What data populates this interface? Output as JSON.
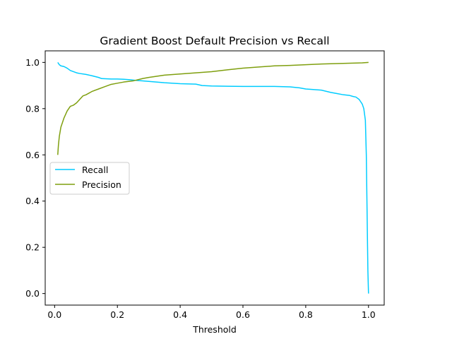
{
  "chart_data": {
    "type": "line",
    "title": "Gradient Boost Default Precision vs Recall",
    "xlabel": "Threshold",
    "ylabel": "",
    "xlim": [
      -0.03,
      1.05
    ],
    "ylim": [
      -0.05,
      1.05
    ],
    "xticks": [
      0.0,
      0.2,
      0.4,
      0.6,
      0.8,
      1.0
    ],
    "xtick_labels": [
      "0.0",
      "0.2",
      "0.4",
      "0.6",
      "0.8",
      "1.0"
    ],
    "yticks": [
      0.0,
      0.2,
      0.4,
      0.6,
      0.8,
      1.0
    ],
    "ytick_labels": [
      "0.0",
      "0.2",
      "0.4",
      "0.6",
      "0.8",
      "1.0"
    ],
    "grid": false,
    "legend": {
      "placement": "center-left"
    },
    "series": [
      {
        "name": "Recall",
        "color": "#00ccff",
        "x": [
          0.01,
          0.015,
          0.02,
          0.03,
          0.04,
          0.05,
          0.06,
          0.07,
          0.08,
          0.1,
          0.12,
          0.14,
          0.15,
          0.18,
          0.2,
          0.22,
          0.24,
          0.26,
          0.28,
          0.3,
          0.35,
          0.4,
          0.45,
          0.47,
          0.5,
          0.55,
          0.6,
          0.65,
          0.7,
          0.75,
          0.78,
          0.8,
          0.82,
          0.85,
          0.88,
          0.9,
          0.92,
          0.94,
          0.95,
          0.96,
          0.97,
          0.975,
          0.98,
          0.985,
          0.99,
          0.993,
          0.995,
          0.997,
          0.998,
          0.999,
          1.0
        ],
        "y": [
          1.0,
          0.99,
          0.985,
          0.982,
          0.975,
          0.965,
          0.96,
          0.955,
          0.952,
          0.948,
          0.942,
          0.935,
          0.93,
          0.928,
          0.928,
          0.927,
          0.925,
          0.922,
          0.92,
          0.918,
          0.912,
          0.908,
          0.906,
          0.9,
          0.898,
          0.897,
          0.896,
          0.896,
          0.896,
          0.894,
          0.89,
          0.885,
          0.883,
          0.88,
          0.87,
          0.865,
          0.86,
          0.857,
          0.853,
          0.85,
          0.84,
          0.83,
          0.82,
          0.8,
          0.75,
          0.6,
          0.4,
          0.2,
          0.1,
          0.05,
          0.0
        ]
      },
      {
        "name": "Precision",
        "color": "#7f9f0f",
        "x": [
          0.01,
          0.012,
          0.015,
          0.02,
          0.025,
          0.03,
          0.04,
          0.05,
          0.06,
          0.07,
          0.08,
          0.09,
          0.1,
          0.12,
          0.14,
          0.16,
          0.18,
          0.2,
          0.22,
          0.25,
          0.28,
          0.3,
          0.35,
          0.4,
          0.45,
          0.5,
          0.55,
          0.6,
          0.65,
          0.7,
          0.75,
          0.8,
          0.85,
          0.9,
          0.95,
          0.98,
          1.0
        ],
        "y": [
          0.6,
          0.64,
          0.68,
          0.72,
          0.74,
          0.76,
          0.79,
          0.81,
          0.815,
          0.825,
          0.84,
          0.855,
          0.86,
          0.875,
          0.885,
          0.895,
          0.905,
          0.91,
          0.915,
          0.92,
          0.93,
          0.935,
          0.945,
          0.95,
          0.955,
          0.96,
          0.968,
          0.975,
          0.98,
          0.985,
          0.987,
          0.99,
          0.993,
          0.995,
          0.997,
          0.998,
          1.0
        ]
      }
    ]
  }
}
